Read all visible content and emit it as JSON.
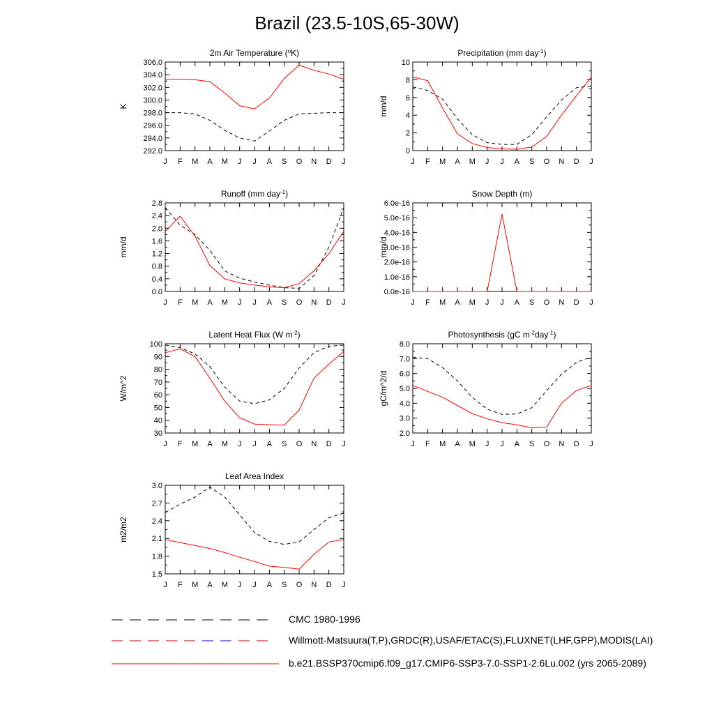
{
  "title": "Brazil (23.5-10S,65-30W)",
  "months": [
    "J",
    "F",
    "M",
    "A",
    "M",
    "J",
    "J",
    "A",
    "S",
    "O",
    "N",
    "D",
    "J"
  ],
  "legend": [
    {
      "label": "CMC 1980-1996",
      "style": "dash-black"
    },
    {
      "label": "Willmott-Matsuura(T,P),GRDC(R),USAF/ETAC(S),FLUXNET(LHF,GPP),MODIS(LAI)",
      "style": "dash-red-blue"
    },
    {
      "label": "b.e21.BSSP370cmip6.f09_g17.CMIP6-SSP3-7.0-SSP1-2.6Lu.002 (yrs 2065-2089)",
      "style": "solid-red"
    }
  ],
  "colors": {
    "model": "#ff0000",
    "obs": "#000000",
    "obs_alt": "#0000ff"
  },
  "chart_data": [
    {
      "type": "line",
      "title": "2m Air Temperature (°K)",
      "title_parts": [
        [
          "2m Air Temperature (",
          ""
        ],
        [
          "o",
          "sup"
        ],
        [
          "K)",
          ""
        ]
      ],
      "ylabel": "K",
      "ylim": [
        292,
        306
      ],
      "yticks": [
        "292.0",
        "294.0",
        "296.0",
        "298.0",
        "300.0",
        "302.0",
        "304.0",
        "306.0"
      ],
      "ytick_values": [
        292,
        294,
        296,
        298,
        300,
        302,
        304,
        306
      ],
      "x": [
        "J",
        "F",
        "M",
        "A",
        "M",
        "J",
        "J",
        "A",
        "S",
        "O",
        "N",
        "D",
        "J"
      ],
      "series": [
        {
          "role": "obs",
          "values": [
            298.0,
            298.0,
            297.8,
            296.8,
            295.2,
            294.0,
            293.5,
            295.1,
            296.8,
            297.8,
            297.9,
            298.0,
            298.0
          ]
        },
        {
          "role": "model",
          "values": [
            303.3,
            303.3,
            303.2,
            302.9,
            301.1,
            299.1,
            298.6,
            300.3,
            303.4,
            305.5,
            304.7,
            304.1,
            303.3
          ]
        }
      ]
    },
    {
      "type": "line",
      "title": "Precipitation (mm day-1)",
      "title_parts": [
        [
          "Precipitation (mm day",
          ""
        ],
        [
          "-1",
          "sup"
        ],
        [
          ")",
          ""
        ]
      ],
      "ylabel": "mm/d",
      "ylim": [
        0,
        10
      ],
      "yticks": [
        "0",
        "2",
        "4",
        "6",
        "8",
        "10"
      ],
      "ytick_values": [
        0,
        2,
        4,
        6,
        8,
        10
      ],
      "x": [
        "J",
        "F",
        "M",
        "A",
        "M",
        "J",
        "J",
        "A",
        "S",
        "O",
        "N",
        "D",
        "J"
      ],
      "series": [
        {
          "role": "obs",
          "values": [
            7.2,
            6.8,
            5.8,
            3.6,
            1.8,
            0.9,
            0.7,
            0.7,
            1.8,
            3.8,
            5.7,
            7.1,
            7.3
          ]
        },
        {
          "role": "model",
          "values": [
            8.3,
            7.9,
            4.8,
            1.9,
            0.8,
            0.35,
            0.2,
            0.15,
            0.4,
            1.6,
            4.0,
            6.2,
            8.3
          ]
        }
      ]
    },
    {
      "type": "line",
      "title": "Runoff (mm day-1)",
      "title_parts": [
        [
          "Runoff (mm day",
          ""
        ],
        [
          "-1",
          "sup"
        ],
        [
          ")",
          ""
        ]
      ],
      "ylabel": "mm/d",
      "ylim": [
        0,
        2.8
      ],
      "yticks": [
        "0.0",
        "0.4",
        "0.8",
        "1.2",
        "1.6",
        "2.0",
        "2.4",
        "2.8"
      ],
      "ytick_values": [
        0,
        0.4,
        0.8,
        1.2,
        1.6,
        2.0,
        2.4,
        2.8
      ],
      "x": [
        "J",
        "F",
        "M",
        "A",
        "M",
        "J",
        "J",
        "A",
        "S",
        "O",
        "N",
        "D",
        "J"
      ],
      "series": [
        {
          "role": "obs",
          "values": [
            2.65,
            2.1,
            1.8,
            1.3,
            0.65,
            0.42,
            0.3,
            0.2,
            0.12,
            0.1,
            0.5,
            1.4,
            2.65
          ]
        },
        {
          "role": "model",
          "values": [
            1.9,
            2.38,
            1.75,
            0.82,
            0.4,
            0.27,
            0.2,
            0.15,
            0.12,
            0.25,
            0.65,
            1.2,
            1.9
          ]
        }
      ]
    },
    {
      "type": "line",
      "title": "Snow Depth (m)",
      "title_parts": [
        [
          "Snow Depth (m)",
          ""
        ]
      ],
      "ylabel": "mm/d",
      "ylim": [
        0,
        6e-16
      ],
      "yticks": [
        "0.0e-16",
        "1.0e-16",
        "2.0e-16",
        "3.0e-16",
        "4.0e-16",
        "5.0e-16",
        "6.0e-16"
      ],
      "ytick_values": [
        0,
        1e-16,
        2e-16,
        3e-16,
        4e-16,
        5e-16,
        6e-16
      ],
      "x": [
        "J",
        "F",
        "M",
        "A",
        "M",
        "J",
        "J",
        "A",
        "S",
        "O",
        "N",
        "D",
        "J"
      ],
      "series": [
        {
          "role": "obs",
          "values": [
            0,
            0,
            0,
            0,
            0,
            0,
            0,
            0,
            0,
            0,
            0,
            0,
            0
          ]
        },
        {
          "role": "model",
          "values": [
            0,
            0,
            0,
            0,
            0,
            0,
            5.25e-16,
            0,
            0,
            0,
            0,
            0,
            0
          ]
        }
      ]
    },
    {
      "type": "line",
      "title": "Latent Heat Flux (W m-2)",
      "title_parts": [
        [
          "Latent Heat Flux (W m",
          ""
        ],
        [
          "-2",
          "sup"
        ],
        [
          ")",
          ""
        ]
      ],
      "ylabel": "W/m^2",
      "ylim": [
        30,
        100
      ],
      "yticks": [
        "30",
        "40",
        "50",
        "60",
        "70",
        "80",
        "90",
        "100"
      ],
      "ytick_values": [
        30,
        40,
        50,
        60,
        70,
        80,
        90,
        100
      ],
      "x": [
        "J",
        "F",
        "M",
        "A",
        "M",
        "J",
        "J",
        "A",
        "S",
        "O",
        "N",
        "D",
        "J"
      ],
      "series": [
        {
          "role": "obs",
          "values": [
            99,
            97,
            92,
            82,
            66,
            55,
            53,
            56,
            65,
            81,
            93,
            98,
            99
          ]
        },
        {
          "role": "model",
          "values": [
            93,
            96,
            90,
            73,
            55,
            42,
            37,
            36.5,
            36.2,
            48,
            73,
            84,
            94
          ]
        }
      ]
    },
    {
      "type": "line",
      "title": "Photosynthesis (gC m-2day-1)",
      "title_parts": [
        [
          "Photosynthesis (gC m",
          ""
        ],
        [
          "-2",
          "sup"
        ],
        [
          "day",
          ""
        ],
        [
          "-1",
          "sup"
        ],
        [
          ")",
          ""
        ]
      ],
      "ylabel": "gC/m^2/d",
      "ylim": [
        2,
        8
      ],
      "yticks": [
        "2.0",
        "3.0",
        "4.0",
        "5.0",
        "6.0",
        "7.0",
        "8.0"
      ],
      "ytick_values": [
        2,
        3,
        4,
        5,
        6,
        7,
        8
      ],
      "x": [
        "J",
        "F",
        "M",
        "A",
        "M",
        "J",
        "J",
        "A",
        "S",
        "O",
        "N",
        "D",
        "J"
      ],
      "series": [
        {
          "role": "obs",
          "values": [
            7.1,
            7.0,
            6.4,
            5.5,
            4.4,
            3.6,
            3.25,
            3.28,
            3.7,
            4.85,
            5.95,
            6.75,
            7.1
          ]
        },
        {
          "role": "model",
          "values": [
            5.2,
            4.8,
            4.4,
            3.85,
            3.3,
            2.95,
            2.7,
            2.55,
            2.35,
            2.4,
            4.0,
            4.85,
            5.2
          ]
        }
      ]
    },
    {
      "type": "line",
      "title": "Leaf Area Index",
      "title_parts": [
        [
          "Leaf Area Index",
          ""
        ]
      ],
      "ylabel": "m2/m2",
      "ylim": [
        1.5,
        3.0
      ],
      "yticks": [
        "1.5",
        "1.8",
        "2.1",
        "2.4",
        "2.7",
        "3.0"
      ],
      "ytick_values": [
        1.5,
        1.8,
        2.1,
        2.4,
        2.7,
        3.0
      ],
      "x": [
        "J",
        "F",
        "M",
        "A",
        "M",
        "J",
        "J",
        "A",
        "S",
        "O",
        "N",
        "D",
        "J"
      ],
      "series": [
        {
          "role": "obs",
          "values": [
            2.54,
            2.68,
            2.8,
            2.97,
            2.8,
            2.5,
            2.2,
            2.05,
            2.0,
            2.04,
            2.25,
            2.45,
            2.53
          ]
        },
        {
          "role": "model",
          "values": [
            2.08,
            2.03,
            1.98,
            1.93,
            1.86,
            1.78,
            1.71,
            1.63,
            1.61,
            1.58,
            1.83,
            2.04,
            2.08
          ]
        }
      ]
    }
  ]
}
